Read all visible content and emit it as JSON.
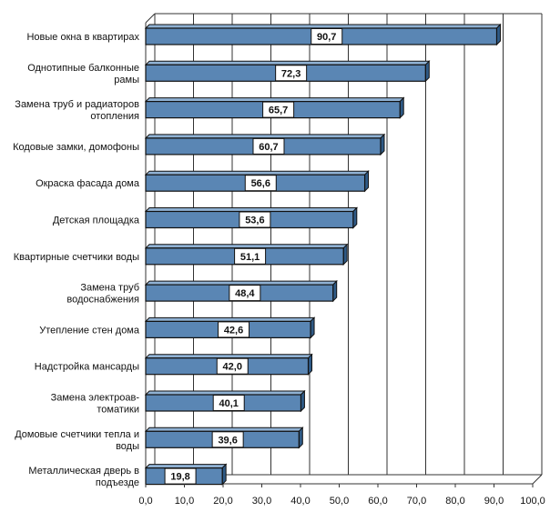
{
  "chart_data": {
    "type": "bar",
    "orientation": "horizontal",
    "bar_style": "3d",
    "categories": [
      "Новые окна в квартирах",
      "Однотипные балконные рамы",
      "Замена труб и радиаторов отопления",
      "Кодовые замки, домофоны",
      "Окраска фасада дома",
      "Детская площадка",
      "Квартирные счетчики воды",
      "Замена труб водоснабжения",
      "Утепление стен дома",
      "Надстройка мансарды",
      "Замена электроав-томатики",
      "Домовые счетчики тепла и воды",
      "Металлическая дверь в подъезде"
    ],
    "category_lines": [
      [
        "Новые окна в квартирах"
      ],
      [
        "Однотипные балконные",
        "рамы"
      ],
      [
        "Замена труб и радиаторов",
        "отопления"
      ],
      [
        "Кодовые замки, домофоны"
      ],
      [
        "Окраска фасада дома"
      ],
      [
        "Детская площадка"
      ],
      [
        "Квартирные счетчики воды"
      ],
      [
        "Замена труб",
        "водоснабжения"
      ],
      [
        "Утепление стен дома"
      ],
      [
        "Надстройка мансарды"
      ],
      [
        "Замена электроав-",
        "томатики"
      ],
      [
        "Домовые счетчики тепла и",
        "воды"
      ],
      [
        "Металлическая дверь в",
        "подъезде"
      ]
    ],
    "values": [
      90.7,
      72.3,
      65.7,
      60.7,
      56.6,
      53.6,
      51.1,
      48.4,
      42.6,
      42.0,
      40.1,
      39.6,
      19.8
    ],
    "value_labels": [
      "90,7",
      "72,3",
      "65,7",
      "60,7",
      "56,6",
      "53,6",
      "51,1",
      "48,4",
      "42,6",
      "42,0",
      "40,1",
      "39,6",
      "19,8"
    ],
    "xlim": [
      0,
      100
    ],
    "x_ticks": [
      "0,0",
      "10,0",
      "20,0",
      "30,0",
      "40,0",
      "50,0",
      "60,0",
      "70,0",
      "80,0",
      "90,0",
      "100,0"
    ],
    "grid": true,
    "colors": {
      "bar": "#5a86b4",
      "bar_top": "#8fb1d3",
      "bar_side": "#2f5a86",
      "outline": "#111111",
      "grid": "#333333"
    }
  }
}
